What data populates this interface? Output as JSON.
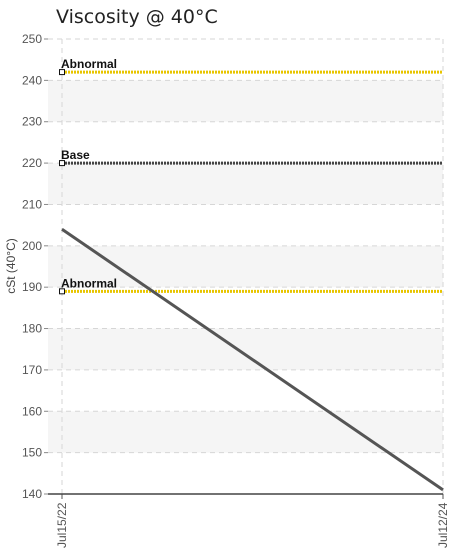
{
  "chart_data": {
    "type": "line",
    "title": "Viscosity @ 40°C",
    "ylabel": "cSt (40°C)",
    "xlabel": "",
    "ylim": [
      140,
      250
    ],
    "y_ticks": [
      140,
      150,
      160,
      170,
      180,
      190,
      200,
      210,
      220,
      230,
      240,
      250
    ],
    "x_ticks": [
      "Jul15/22",
      "Jul12/24"
    ],
    "grid": true,
    "series": [
      {
        "x": [
          "Jul15/22",
          "Jul12/24"
        ],
        "values": [
          204,
          141
        ],
        "color": "#555555"
      }
    ],
    "reference_lines": [
      {
        "label": "Abnormal",
        "value": 242,
        "color": "#e8c500"
      },
      {
        "label": "Base",
        "value": 220,
        "color": "#444444"
      },
      {
        "label": "Abnormal",
        "value": 189,
        "color": "#e8c500"
      }
    ]
  }
}
